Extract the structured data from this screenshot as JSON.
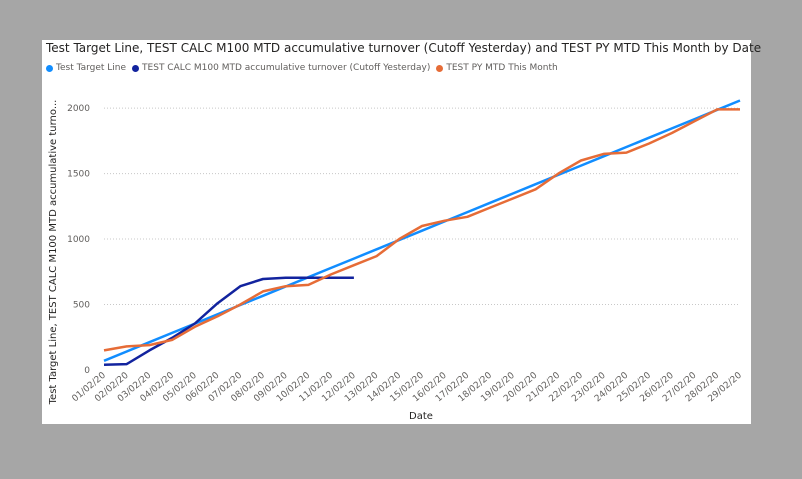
{
  "chart_data": {
    "type": "line",
    "title": "Test Target Line, TEST CALC M100 MTD accumulative turnover (Cutoff Yesterday) and TEST PY MTD This Month by Date",
    "xlabel": "Date",
    "ylabel": "Test Target Line, TEST CALC M100 MTD accumulative turno...",
    "ylim": [
      0,
      2100
    ],
    "yticks": [
      "0",
      "500",
      "1000",
      "1500",
      "2000"
    ],
    "ytick_values": [
      0,
      500,
      1000,
      1500,
      2000
    ],
    "grid": true,
    "legend_position": "top-left",
    "categories": [
      "01/02/20",
      "02/02/20",
      "03/02/20",
      "04/02/20",
      "05/02/20",
      "06/02/20",
      "07/02/20",
      "08/02/20",
      "09/02/20",
      "10/02/20",
      "11/02/20",
      "12/02/20",
      "13/02/20",
      "14/02/20",
      "15/02/20",
      "16/02/20",
      "17/02/20",
      "18/02/20",
      "19/02/20",
      "20/02/20",
      "21/02/20",
      "22/02/20",
      "23/02/20",
      "24/02/20",
      "25/02/20",
      "26/02/20",
      "27/02/20",
      "28/02/20",
      "29/02/20"
    ],
    "series": [
      {
        "name": "Test Target Line",
        "color": "#118dff",
        "values": [
          70,
          141,
          212,
          283,
          354,
          425,
          496,
          567,
          638,
          709,
          780,
          851,
          922,
          993,
          1064,
          1135,
          1206,
          1277,
          1348,
          1419,
          1490,
          1561,
          1632,
          1703,
          1774,
          1845,
          1916,
          1987,
          2058
        ]
      },
      {
        "name": "TEST CALC M100 MTD accumulative turnover (Cutoff Yesterday)",
        "color": "#12239e",
        "values": [
          40,
          45,
          150,
          245,
          355,
          510,
          640,
          695,
          705,
          705,
          705,
          705,
          null,
          null,
          null,
          null,
          null,
          null,
          null,
          null,
          null,
          null,
          null,
          null,
          null,
          null,
          null,
          null,
          null
        ]
      },
      {
        "name": "TEST PY MTD This Month",
        "color": "#e66c37",
        "values": [
          150,
          180,
          190,
          230,
          330,
          410,
          500,
          600,
          640,
          650,
          730,
          800,
          870,
          1000,
          1100,
          1140,
          1170,
          1240,
          1310,
          1380,
          1500,
          1600,
          1650,
          1660,
          1730,
          1810,
          1900,
          1990,
          1990
        ]
      }
    ]
  }
}
